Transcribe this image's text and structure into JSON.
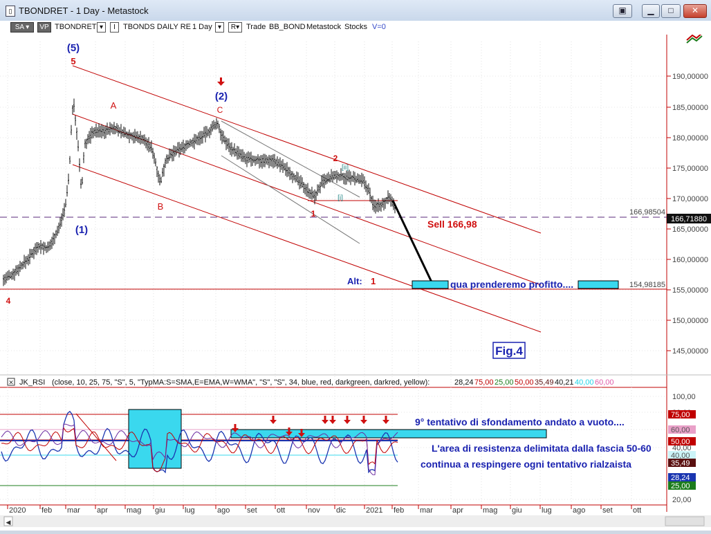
{
  "window": {
    "title": "TBONDRET - 1 Day - Metastock",
    "buttons": [
      "restore",
      "minimize",
      "maximize",
      "close"
    ]
  },
  "toolbar": {
    "sa": "SA",
    "vp": "VP",
    "symbol": "TBONDRET",
    "i_box": "I",
    "chart_name": "TBONDS DAILY RE",
    "period": "1 Day",
    "r_box": "R",
    "trade": "Trade",
    "bb_bond": "BB_BOND",
    "metastock": "Metastock",
    "stocks": "Stocks",
    "v": "V=0"
  },
  "price_panel": {
    "y_labels": [
      "190,00000",
      "185,00000",
      "180,00000",
      "175,00000",
      "170,00000",
      "165,00000",
      "160,00000",
      "155,00000",
      "150,00000",
      "145,00000"
    ],
    "price_label_1": "166,98504",
    "current_price": "166,71880",
    "price_label_2": "154,98185",
    "wave_labels": {
      "w5_blue": "(5)",
      "w5_red": "5",
      "w1_blue": "(1)",
      "w2_blue": "(2)",
      "a": "A",
      "b": "B",
      "c": "C",
      "w2_red": "2",
      "ii": "[ii]",
      "i": "[i]",
      "w1_red": "1",
      "w4_red": "4",
      "alt": "Alt:",
      "alt_1": "1"
    },
    "sell_label": "Sell 166,98",
    "target_label": "qua prenderemo profitto....",
    "fig_label": "Fig.4"
  },
  "indicator_panel": {
    "title_prefix": "JK_RSI",
    "params": "(close, 10, 25, 75, \"S\", 5, \"TypMA:S=SMA,E=EMA,W=WMA\", \"S\", \"S\", 34, blue, red, darkgreen, darkred, yellow):",
    "values": [
      "28,24",
      "75,00",
      "25,00",
      "50,00",
      "35,49",
      "40,21",
      "40,00",
      "60,00"
    ],
    "value_colors": [
      "#111111",
      "#c00000",
      "#1c7c1c",
      "#c00000",
      "#5a1010",
      "#111111",
      "#22d4e8",
      "#e05aa8"
    ],
    "y_labels": [
      "100,00",
      "80,00",
      "60,00",
      "40,00",
      "20,00"
    ],
    "right_tags": [
      "75,00",
      "60,00",
      "50,00",
      "40,00",
      "35,49",
      "28,24",
      "25,00"
    ],
    "tag_colors": [
      "#c00000",
      "#e9a0c8",
      "#c00000",
      "#ccf4f8",
      "#5a1010",
      "#1a35b0",
      "#1c7c1c"
    ],
    "annotation_1": "9° tentativo di sfondamento andato a vuoto....",
    "annotation_2": "L'area di resistenza delimitata dalla fascia 50-60",
    "annotation_3": "continua a respingere ogni tentativo rialzaista"
  },
  "x_axis": {
    "labels": [
      "2020",
      "feb",
      "mar",
      "apr",
      "mag",
      "giu",
      "lug",
      "ago",
      "set",
      "ott",
      "nov",
      "dic",
      "2021",
      "feb",
      "mar",
      "apr",
      "mag",
      "giu",
      "lug",
      "ago",
      "set",
      "ott"
    ]
  },
  "colors": {
    "candles": "#111111",
    "channel": "#c00000",
    "wave_blue": "#1a22b0",
    "wave_red": "#d01010",
    "cyan": "#3ad8ee"
  }
}
